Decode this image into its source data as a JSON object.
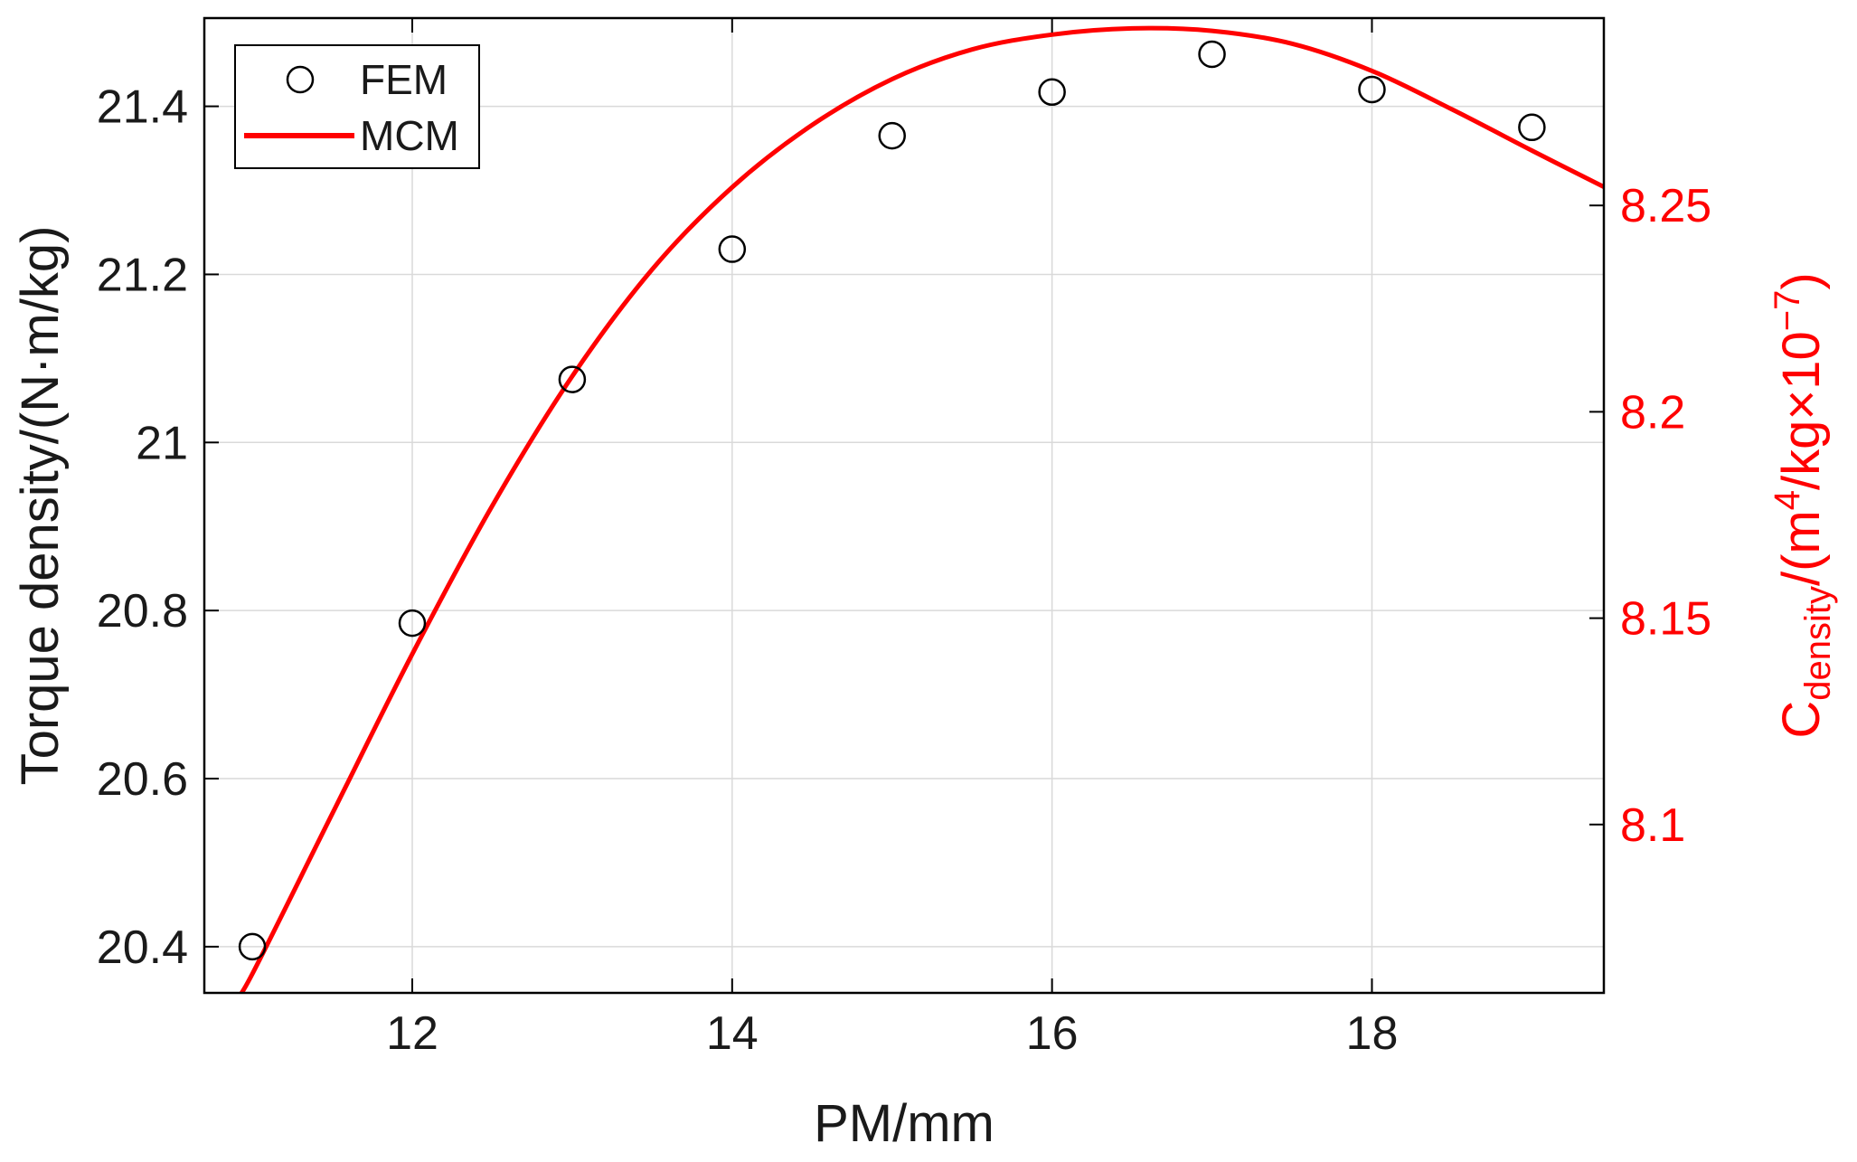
{
  "chart_data": {
    "type": "line",
    "xlabel": "PM/mm",
    "ylabel": "Torque density/(N·m/kg)",
    "ylabel_right": {
      "base": "C",
      "subscript": "density",
      "middle": "/(m",
      "superscript_1": "4",
      "after": "/kg×10",
      "superscript_2": "−7",
      "end": ")"
    },
    "xlim": [
      10.7,
      19.45
    ],
    "ylim": [
      20.345,
      21.505
    ],
    "ylim_right": [
      8.0592,
      8.2954
    ],
    "xticks": [
      12,
      14,
      16,
      18
    ],
    "xtick_labels": [
      "12",
      "14",
      "16",
      "18"
    ],
    "yticks": [
      20.4,
      20.6,
      20.8,
      21,
      21.2,
      21.4
    ],
    "ytick_labels": [
      "20.4",
      "20.6",
      "20.8",
      "21",
      "21.2",
      "21.4"
    ],
    "yticks_right": [
      8.1,
      8.15,
      8.2,
      8.25
    ],
    "ytick_labels_right": [
      "8.1",
      "8.15",
      "8.2",
      "8.25"
    ],
    "grid": true,
    "legend_position": "top-left",
    "colors": {
      "fem": "#000000",
      "mcm": "#ff0000",
      "right_axis": "#ff0000",
      "grid": "#d9d9d9"
    },
    "series": [
      {
        "name": "FEM",
        "style": "markers",
        "marker": "circle-open",
        "axis": "left",
        "x": [
          11,
          12,
          13,
          14,
          15,
          16,
          17,
          18,
          19
        ],
        "y": [
          20.4,
          20.785,
          21.075,
          21.23,
          21.365,
          21.417,
          21.462,
          21.42,
          21.375
        ]
      },
      {
        "name": "MCM",
        "style": "line",
        "axis": "right",
        "x": [
          10.9,
          11.0,
          11.5,
          12.0,
          12.5,
          13.0,
          13.5,
          14.0,
          14.5,
          15.0,
          15.5,
          16.0,
          16.5,
          17.0,
          17.5,
          18.0,
          18.5,
          19.0,
          19.45
        ],
        "y": [
          8.058,
          8.0638,
          8.1026,
          8.1413,
          8.1772,
          8.2086,
          8.2345,
          8.2544,
          8.2695,
          8.2806,
          8.2878,
          8.2914,
          8.2929,
          8.2923,
          8.2892,
          8.2826,
          8.2733,
          8.2633,
          8.2545
        ]
      }
    ]
  }
}
